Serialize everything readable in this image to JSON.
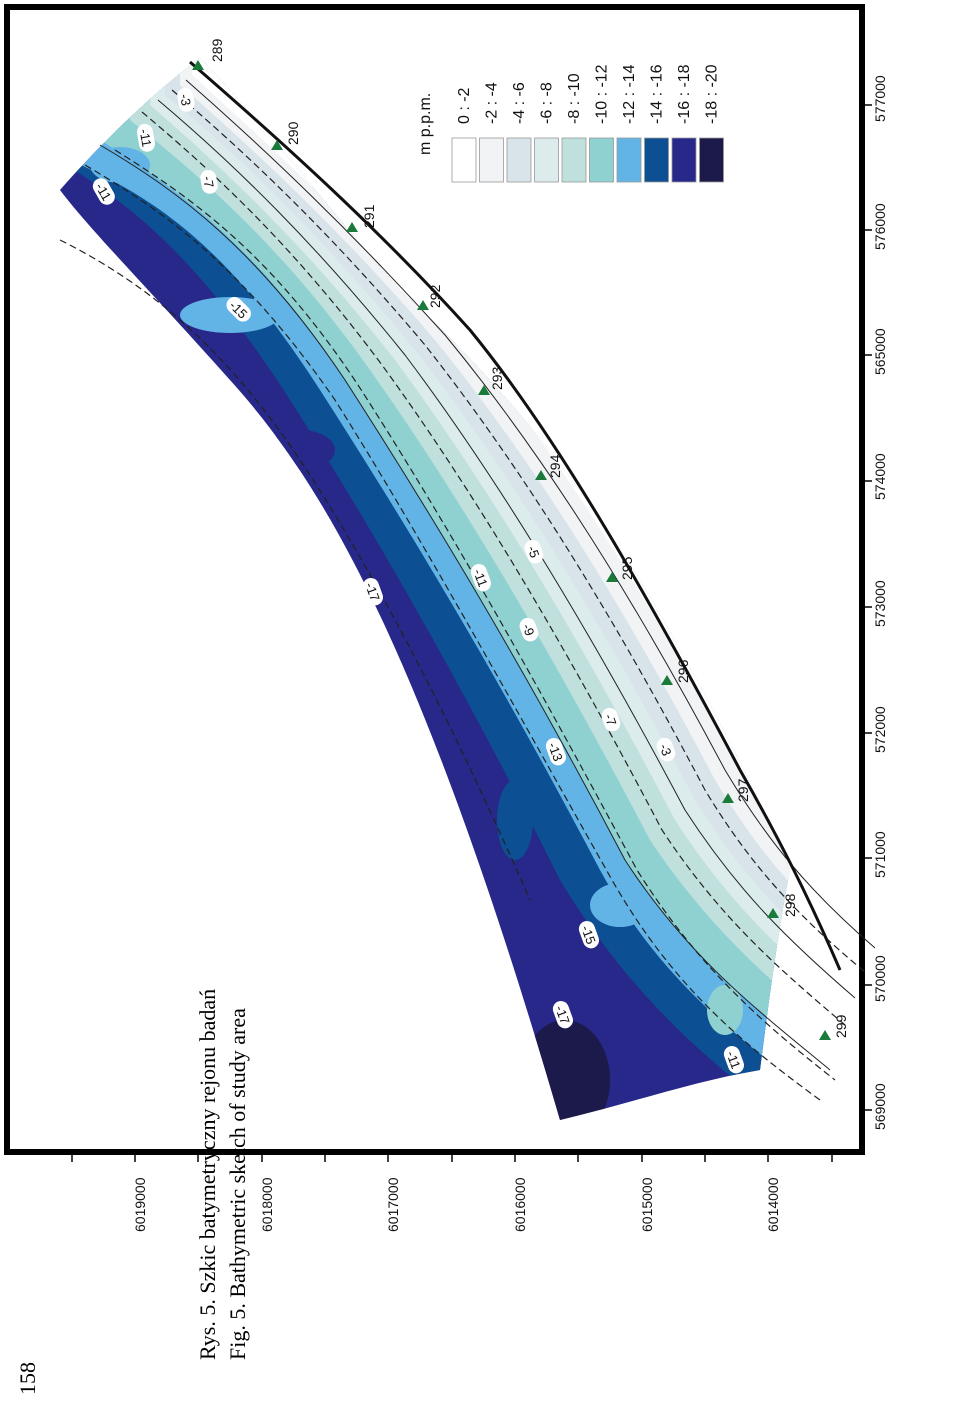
{
  "page": {
    "page_number": "158",
    "caption_pl": "Rys. 5. Szkic batymetryczny rejonu badań",
    "caption_en": "Fig. 5. Bathymetric sketch of study area"
  },
  "axes": {
    "easting_labels": [
      "569000",
      "570000",
      "571000",
      "572000",
      "573000",
      "574000",
      "565000",
      "576000",
      "577000"
    ],
    "northing_labels": [
      "6019000",
      "6018000",
      "6017000",
      "6016000",
      "6015000",
      "6014000"
    ]
  },
  "legend": {
    "title": "m p.p.m.",
    "classes": [
      {
        "label": "0 : -2",
        "color": "#ffffff"
      },
      {
        "label": "-2 : -4",
        "color": "#f1f3f5"
      },
      {
        "label": "-4 : -6",
        "color": "#d8e3ea"
      },
      {
        "label": "-6 : -8",
        "color": "#dcebec"
      },
      {
        "label": "-8 : -10",
        "color": "#bfe0dc"
      },
      {
        "label": "-10 : -12",
        "color": "#8fd1d0"
      },
      {
        "label": "-12 : -14",
        "color": "#62b4e6"
      },
      {
        "label": "-14 : -16",
        "color": "#0c4f93"
      },
      {
        "label": "-16 : -18",
        "color": "#28278a"
      },
      {
        "label": "-18 : -20",
        "color": "#1c1a4a"
      }
    ]
  },
  "stations": [
    "289",
    "290",
    "291",
    "292",
    "293",
    "294",
    "295",
    "296",
    "297",
    "298",
    "299"
  ],
  "contour_labels": [
    "-3",
    "-11",
    "-7",
    "-11",
    "-15",
    "-17",
    "-11",
    "-5",
    "-9",
    "-7",
    "-3",
    "-13",
    "-15",
    "-17",
    "-11"
  ],
  "colors": {
    "station_marker": "#1a7a3a",
    "coastline": "#111111",
    "frame": "#000000"
  }
}
